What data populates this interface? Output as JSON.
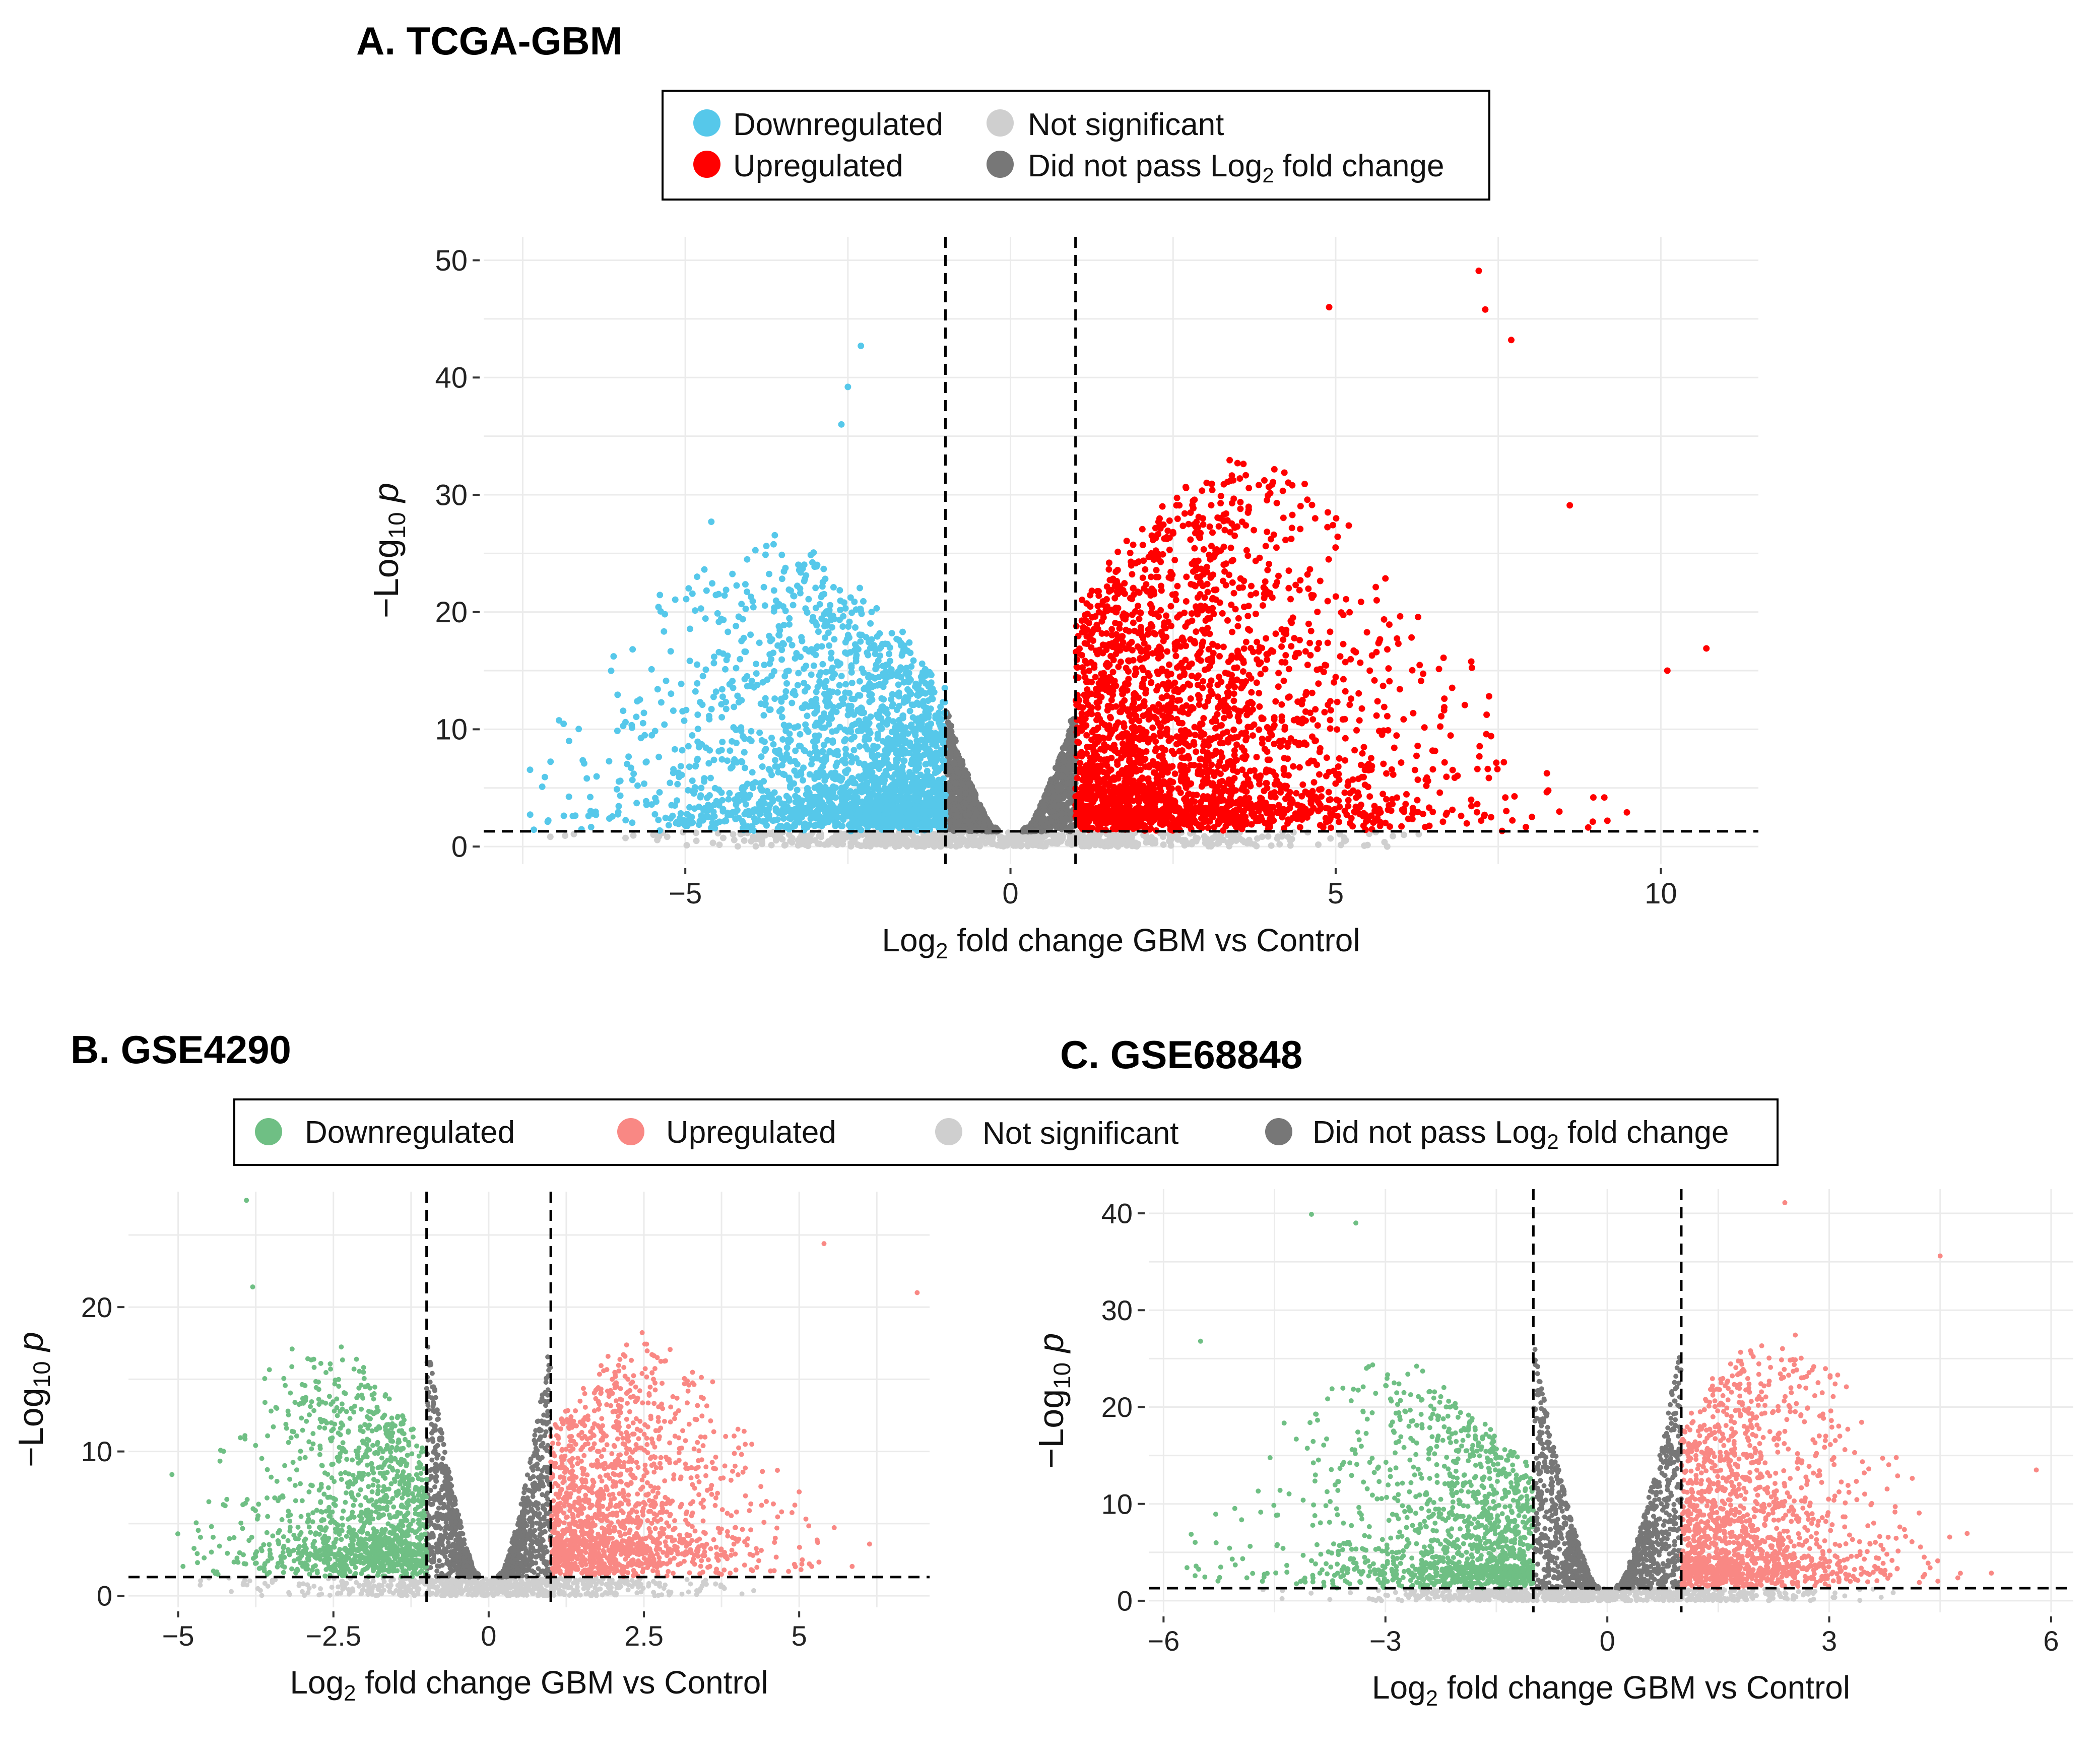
{
  "figure": {
    "colors": {
      "not_significant": "#cfcfcf",
      "did_not_pass": "#777777",
      "grid": "#ebebeb",
      "threshold_line": "#000000"
    }
  },
  "legend_top": {
    "items": [
      {
        "label": "Downregulated",
        "color": "#56c8ea"
      },
      {
        "label": "Not significant",
        "color": "#cfcfcf"
      },
      {
        "label": "Upregulated",
        "color": "#ff0000"
      },
      {
        "label": "Did not pass Log",
        "sub": "2",
        "tail": " fold change",
        "color": "#777777"
      }
    ]
  },
  "legend_bottom": {
    "items": [
      {
        "label": "Downregulated",
        "color": "#6fbf84"
      },
      {
        "label": "Upregulated",
        "color": "#f98884"
      },
      {
        "label": "Not significant",
        "color": "#cfcfcf"
      },
      {
        "label": "Did not pass Log",
        "sub": "2",
        "tail": " fold change",
        "color": "#777777"
      }
    ]
  },
  "chart_data": [
    {
      "id": "A",
      "type": "scatter",
      "title": "A. TCGA-GBM",
      "xlabel": {
        "pre": "Log",
        "sub": "2",
        "post": " fold change GBM vs Control"
      },
      "ylabel": {
        "pre": "−Log",
        "sub": "10",
        "post": " p"
      },
      "xlim": [
        -8.1,
        11.5
      ],
      "ylim": [
        -1.5,
        52
      ],
      "x_ticks": [
        -5,
        0,
        5,
        10
      ],
      "x_tick_labels": [
        "−5",
        "0",
        "5",
        "10"
      ],
      "y_ticks": [
        0,
        10,
        20,
        30,
        40,
        50
      ],
      "y_tick_labels": [
        "0",
        "10",
        "20",
        "30",
        "40",
        "50"
      ],
      "fc_cutoff": 1,
      "p_cutoff": 1.3,
      "colors": {
        "down": "#56c8ea",
        "up": "#ff0000"
      },
      "series": [
        {
          "name": "Downregulated",
          "x_range": [
            -7.4,
            -1
          ],
          "y_max": 42.7,
          "peak_x": -2.5
        },
        {
          "name": "Upregulated",
          "x_range": [
            1,
            10.7
          ],
          "y_max": 49.1,
          "peak_x": 3.2
        },
        {
          "name": "Not significant",
          "y_max": 1.3
        },
        {
          "name": "Did not pass Log2 fold change",
          "x_range": [
            -1,
            1
          ],
          "y_max": 12
        }
      ],
      "highlights": [
        {
          "x": -2.3,
          "y": 42.7
        },
        {
          "x": -2.5,
          "y": 39.2
        },
        {
          "x": -2.6,
          "y": 36.0
        },
        {
          "x": -4.6,
          "y": 27.7
        },
        {
          "x": 7.2,
          "y": 49.1
        },
        {
          "x": 4.9,
          "y": 46.0
        },
        {
          "x": 7.3,
          "y": 45.8
        },
        {
          "x": 7.7,
          "y": 43.2
        },
        {
          "x": 10.7,
          "y": 16.9
        },
        {
          "x": 10.1,
          "y": 15.0
        },
        {
          "x": -7.2,
          "y": 5.1
        },
        {
          "x": 8.6,
          "y": 29.1
        }
      ]
    },
    {
      "id": "B",
      "type": "scatter",
      "title": "B. GSE4290",
      "xlabel": {
        "pre": "Log",
        "sub": "2",
        "post": " fold change GBM vs Control"
      },
      "ylabel": {
        "pre": "−Log",
        "sub": "10",
        "post": " p"
      },
      "xlim": [
        -5.8,
        7.1
      ],
      "ylim": [
        -0.8,
        28
      ],
      "x_ticks": [
        -5,
        -2.5,
        0,
        2.5,
        5
      ],
      "x_tick_labels": [
        "−5",
        "−2.5",
        "0",
        "2.5",
        "5"
      ],
      "y_ticks": [
        0,
        10,
        20
      ],
      "y_tick_labels": [
        "0",
        "10",
        "20"
      ],
      "fc_cutoff": 1,
      "p_cutoff": 1.3,
      "colors": {
        "down": "#6fbf84",
        "up": "#f98884"
      },
      "series": [
        {
          "name": "Downregulated",
          "x_range": [
            -5.2,
            -1
          ],
          "y_max": 27.4
        },
        {
          "name": "Upregulated",
          "x_range": [
            1,
            6.9
          ],
          "y_max": 24.4
        },
        {
          "name": "Not significant",
          "y_max": 1.3
        },
        {
          "name": "Did not pass Log2 fold change",
          "x_range": [
            -1,
            1
          ],
          "y_max": 18
        }
      ],
      "highlights": [
        {
          "x": -3.9,
          "y": 27.4
        },
        {
          "x": 5.4,
          "y": 24.4
        },
        {
          "x": 6.9,
          "y": 21.0
        },
        {
          "x": -3.8,
          "y": 21.4
        },
        {
          "x": -5.1,
          "y": 8.4
        },
        {
          "x": 5.0,
          "y": 7.2
        }
      ]
    },
    {
      "id": "C",
      "type": "scatter",
      "title": "C. GSE68848",
      "xlabel": {
        "pre": "Log",
        "sub": "2",
        "post": " fold change GBM vs Control"
      },
      "ylabel": {
        "pre": "−Log",
        "sub": "10",
        "post": " p"
      },
      "xlim": [
        -6.2,
        6.3
      ],
      "ylim": [
        -1.2,
        42.5
      ],
      "x_ticks": [
        -6,
        -3,
        0,
        3,
        6
      ],
      "x_tick_labels": [
        "−6",
        "−3",
        "0",
        "3",
        "6"
      ],
      "y_ticks": [
        0,
        10,
        20,
        30,
        40
      ],
      "y_tick_labels": [
        "0",
        "10",
        "20",
        "30",
        "40"
      ],
      "fc_cutoff": 1,
      "p_cutoff": 1.3,
      "colors": {
        "down": "#6fbf84",
        "up": "#f98884"
      },
      "series": [
        {
          "name": "Downregulated",
          "x_range": [
            -5.7,
            -1
          ],
          "y_max": 39.9
        },
        {
          "name": "Upregulated",
          "x_range": [
            1,
            5.8
          ],
          "y_max": 41.1
        },
        {
          "name": "Not significant",
          "y_max": 1.3
        },
        {
          "name": "Did not pass Log2 fold change",
          "x_range": [
            -1,
            1
          ],
          "y_max": 27
        }
      ],
      "highlights": [
        {
          "x": -4,
          "y": 39.9
        },
        {
          "x": -3.4,
          "y": 39.0
        },
        {
          "x": 2.4,
          "y": 41.1
        },
        {
          "x": 4.5,
          "y": 35.6
        },
        {
          "x": 5.8,
          "y": 13.5
        },
        {
          "x": -5.5,
          "y": 26.8
        }
      ]
    }
  ]
}
